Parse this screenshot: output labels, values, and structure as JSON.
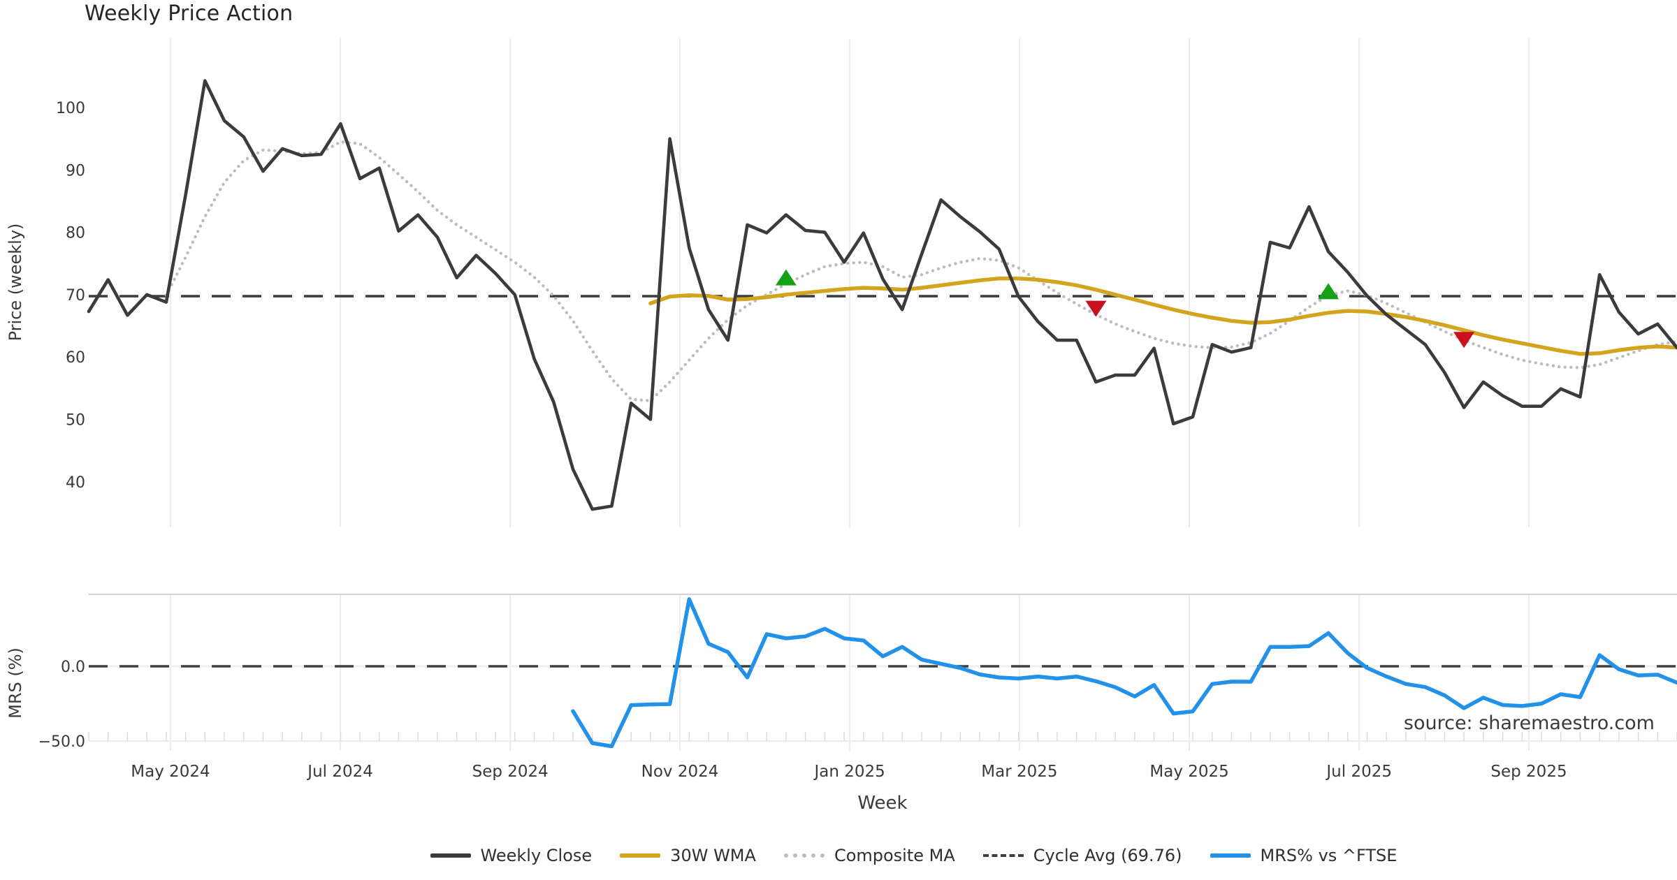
{
  "title": "Weekly Price Action",
  "source_text": "source: sharemaestro.com",
  "axes": {
    "x_label": "Week",
    "price_axis_label": "Price (weekly)",
    "mrs_axis_label": "MRS (%)",
    "price_ticks": [
      100,
      90,
      80,
      70,
      60,
      50,
      40
    ],
    "mrs_ticks": [
      {
        "label": "0.0",
        "value": 0
      },
      {
        "label": "−50.0",
        "value": -50
      }
    ],
    "month_ticks": [
      {
        "label": "May 2024",
        "week": 4.22
      },
      {
        "label": "Jul 2024",
        "week": 12.99
      },
      {
        "label": "Sep 2024",
        "week": 21.76
      },
      {
        "label": "Nov 2024",
        "week": 30.52
      },
      {
        "label": "Jan 2025",
        "week": 39.29
      },
      {
        "label": "Mar 2025",
        "week": 48.05
      },
      {
        "label": "May 2025",
        "week": 56.82
      },
      {
        "label": "Jul 2025",
        "week": 65.59
      },
      {
        "label": "Sep 2025",
        "week": 74.35
      }
    ]
  },
  "legend": {
    "items": [
      {
        "id": "weekly-close",
        "label": "Weekly Close",
        "swatch": "solid",
        "color": "#3b3b3b"
      },
      {
        "id": "wma-30w",
        "label": "30W WMA",
        "swatch": "solid",
        "color": "#d5a41f"
      },
      {
        "id": "composite-ma",
        "label": "Composite MA",
        "swatch": "dotted",
        "color": "#bcbcbc"
      },
      {
        "id": "cycle-avg",
        "label": "Cycle Avg (69.76)",
        "swatch": "dashed",
        "color": "#3f3f3f"
      },
      {
        "id": "mrs-ftse",
        "label": "MRS% vs ^FTSE",
        "swatch": "solid",
        "color": "#2191ea"
      }
    ]
  },
  "colors": {
    "weekly_close": "#3b3b3b",
    "wma": "#d5a41f",
    "composite": "#bdbdbd",
    "cycle_avg": "#3f3f3f",
    "mrs": "#2191ea",
    "buy_marker": "#15a015",
    "sell_marker": "#c8101e",
    "grid": "#ededed",
    "panel_border": "#d3d3d3",
    "source": "#9a9a9a"
  },
  "chart_data": [
    {
      "type": "line",
      "panel": "price",
      "title": "Weekly Price Action",
      "xlabel": "Week",
      "ylabel": "Price (weekly)",
      "ylim": [
        33,
        111
      ],
      "x_unit": "week_index_from_2024-04",
      "cycle_avg": 69.76,
      "series": [
        {
          "name": "Weekly Close",
          "style": "solid",
          "start_week": 0,
          "values": [
            67.3,
            72.4,
            66.7,
            70.0,
            68.8,
            86.0,
            104.3,
            97.9,
            95.3,
            89.8,
            93.4,
            92.3,
            92.5,
            97.4,
            88.6,
            90.3,
            80.2,
            82.8,
            79.2,
            72.7,
            76.3,
            73.4,
            70.0,
            59.7,
            52.8,
            42.0,
            35.6,
            36.1,
            52.6,
            50.0,
            95.0,
            77.5,
            67.6,
            62.7,
            81.2,
            79.9,
            82.8,
            80.3,
            80.0,
            75.2,
            79.9,
            72.5,
            67.6,
            76.5,
            85.2,
            82.5,
            80.1,
            77.3,
            69.7,
            65.7,
            62.7,
            62.7,
            56.0,
            57.1,
            57.1,
            61.4,
            49.3,
            50.4,
            62.0,
            60.8,
            61.5,
            78.4,
            77.5,
            84.1,
            76.9,
            73.6,
            69.8,
            66.8,
            64.4,
            62.0,
            57.5,
            51.9,
            56.0,
            53.8,
            52.1,
            52.1,
            54.9,
            53.6,
            73.2,
            67.2,
            63.7,
            65.3,
            61.5
          ]
        },
        {
          "name": "30W WMA",
          "style": "solid",
          "start_week": 29,
          "values": [
            68.6,
            69.7,
            69.9,
            69.8,
            69.2,
            69.3,
            69.6,
            70.0,
            70.3,
            70.6,
            70.9,
            71.1,
            71.0,
            70.8,
            71.1,
            71.5,
            71.9,
            72.3,
            72.6,
            72.6,
            72.4,
            72.0,
            71.5,
            70.8,
            70.0,
            69.2,
            68.4,
            67.6,
            66.9,
            66.3,
            65.8,
            65.5,
            65.6,
            66.0,
            66.6,
            67.1,
            67.4,
            67.3,
            66.9,
            66.4,
            65.8,
            65.1,
            64.3,
            63.5,
            62.8,
            62.2,
            61.6,
            61.0,
            60.5,
            60.6,
            61.1,
            61.5,
            61.7,
            61.5
          ]
        },
        {
          "name": "Composite MA",
          "style": "dotted",
          "start_week": 4,
          "values": [
            69.9,
            76.0,
            82.5,
            88.0,
            91.5,
            93.2,
            93.0,
            92.6,
            92.8,
            94.5,
            94.2,
            92.0,
            89.3,
            86.5,
            83.5,
            81.2,
            79.2,
            77.2,
            75.2,
            72.8,
            69.8,
            65.8,
            61.0,
            56.5,
            53.2,
            53.0,
            56.0,
            59.5,
            63.0,
            66.0,
            68.3,
            70.0,
            71.7,
            73.2,
            74.5,
            75.0,
            75.2,
            74.5,
            72.8,
            73.2,
            74.3,
            75.2,
            75.8,
            75.5,
            74.3,
            72.3,
            70.3,
            68.5,
            66.8,
            65.3,
            64.1,
            63.0,
            62.2,
            61.7,
            61.5,
            61.6,
            62.3,
            63.8,
            65.8,
            68.0,
            69.9,
            70.6,
            69.9,
            68.6,
            67.1,
            65.6,
            64.1,
            62.7,
            61.5,
            60.4,
            59.5,
            58.9,
            58.4,
            58.3,
            58.8,
            59.9,
            61.0,
            62.0,
            62.5
          ]
        },
        {
          "name": "Cycle Avg",
          "style": "dashed",
          "constant": 69.76
        }
      ],
      "markers": [
        {
          "type": "buy",
          "week": 36,
          "price": 72.6
        },
        {
          "type": "sell",
          "week": 52,
          "price": 67.9
        },
        {
          "type": "buy",
          "week": 64,
          "price": 70.4
        },
        {
          "type": "sell",
          "week": 71,
          "price": 62.9
        }
      ]
    },
    {
      "type": "line",
      "panel": "mrs",
      "ylabel": "MRS (%)",
      "ylim": [
        -58,
        48
      ],
      "zero_line_dashed": true,
      "series": [
        {
          "name": "MRS% vs ^FTSE",
          "style": "solid",
          "start_week": 25,
          "values": [
            -30.0,
            -51.4,
            -53.5,
            -26.0,
            -25.5,
            -25.3,
            44.9,
            15.1,
            9.5,
            -7.5,
            21.5,
            18.7,
            20.0,
            25.1,
            18.7,
            17.3,
            6.7,
            13.0,
            4.5,
            1.7,
            -1.1,
            -5.4,
            -7.5,
            -8.2,
            -6.8,
            -8.2,
            -6.8,
            -10.0,
            -14.0,
            -20.2,
            -12.5,
            -31.6,
            -30.2,
            -11.8,
            -10.3,
            -10.3,
            13.0,
            13.0,
            13.5,
            22.2,
            8.8,
            -1.1,
            -6.8,
            -11.8,
            -13.9,
            -19.5,
            -28.0,
            -21.0,
            -25.9,
            -26.6,
            -25.0,
            -18.7,
            -20.6,
            7.5,
            -2.0,
            -6.1,
            -5.6,
            -11.0
          ]
        }
      ]
    }
  ]
}
